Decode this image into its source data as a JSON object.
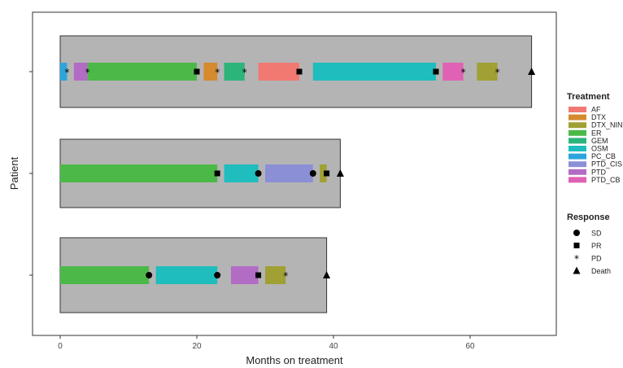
{
  "chart_data": {
    "type": "swimmer",
    "xlabel": "Months on treatment",
    "ylabel": "Patient",
    "xlim": [
      -5,
      73
    ],
    "xticks": [
      0,
      20,
      40,
      60
    ],
    "patients": [
      {
        "total": 69,
        "segments": [
          {
            "treatment": "PC_CB",
            "start": 0,
            "end": 1
          },
          {
            "treatment": "PTD",
            "start": 2,
            "end": 4
          },
          {
            "treatment": "ER",
            "start": 4,
            "end": 20
          },
          {
            "treatment": "DTX",
            "start": 21,
            "end": 23
          },
          {
            "treatment": "GEM",
            "start": 24,
            "end": 27
          },
          {
            "treatment": "AF",
            "start": 29,
            "end": 35
          },
          {
            "treatment": "OSM",
            "start": 37,
            "end": 55
          },
          {
            "treatment": "PTD_CB",
            "start": 56,
            "end": 59
          },
          {
            "treatment": "DTX_NIN",
            "start": 61,
            "end": 64
          }
        ],
        "responses": [
          {
            "type": "PD",
            "x": 1
          },
          {
            "type": "PD",
            "x": 4
          },
          {
            "type": "PR",
            "x": 20
          },
          {
            "type": "PD",
            "x": 23
          },
          {
            "type": "PD",
            "x": 27
          },
          {
            "type": "PR",
            "x": 35
          },
          {
            "type": "PR",
            "x": 55
          },
          {
            "type": "PD",
            "x": 59
          },
          {
            "type": "PD",
            "x": 64
          },
          {
            "type": "Death",
            "x": 69
          }
        ]
      },
      {
        "total": 41,
        "segments": [
          {
            "treatment": "ER",
            "start": 0,
            "end": 23
          },
          {
            "treatment": "OSM",
            "start": 24,
            "end": 29
          },
          {
            "treatment": "PTD_CIS",
            "start": 30,
            "end": 37
          },
          {
            "treatment": "DTX_NIN",
            "start": 38,
            "end": 39
          }
        ],
        "responses": [
          {
            "type": "PR",
            "x": 23
          },
          {
            "type": "SD",
            "x": 29
          },
          {
            "type": "SD",
            "x": 37
          },
          {
            "type": "PR",
            "x": 39
          },
          {
            "type": "Death",
            "x": 41
          }
        ]
      },
      {
        "total": 39,
        "segments": [
          {
            "treatment": "ER",
            "start": 0,
            "end": 13
          },
          {
            "treatment": "OSM",
            "start": 14,
            "end": 23
          },
          {
            "treatment": "PTD",
            "start": 25,
            "end": 29
          },
          {
            "treatment": "DTX_NIN",
            "start": 30,
            "end": 33
          }
        ],
        "responses": [
          {
            "type": "SD",
            "x": 13
          },
          {
            "type": "SD",
            "x": 23
          },
          {
            "type": "PR",
            "x": 29
          },
          {
            "type": "PD",
            "x": 33
          },
          {
            "type": "Death",
            "x": 39
          }
        ]
      }
    ],
    "legend": {
      "treatment_title": "Treatment",
      "treatments": [
        {
          "name": "AF",
          "color": "#f07a72"
        },
        {
          "name": "DTX",
          "color": "#d58a2e"
        },
        {
          "name": "DTX_NIN",
          "color": "#a0a034"
        },
        {
          "name": "ER",
          "color": "#4cb848"
        },
        {
          "name": "GEM",
          "color": "#2db47b"
        },
        {
          "name": "OSM",
          "color": "#1fbdbd"
        },
        {
          "name": "PC_CB",
          "color": "#2ea4dc"
        },
        {
          "name": "PTD_CIS",
          "color": "#8b8fd6"
        },
        {
          "name": "PTD",
          "color": "#b36cc4"
        },
        {
          "name": "PTD_CB",
          "color": "#df62b4"
        }
      ],
      "response_title": "Response",
      "responses": [
        {
          "name": "SD",
          "shape": "circle"
        },
        {
          "name": "PR",
          "shape": "square"
        },
        {
          "name": "PD",
          "shape": "asterisk"
        },
        {
          "name": "Death",
          "shape": "triangle"
        }
      ]
    },
    "colors": {
      "patient_bar": "#b4b4b4",
      "panel_border": "#333333",
      "marker": "#000000"
    }
  }
}
